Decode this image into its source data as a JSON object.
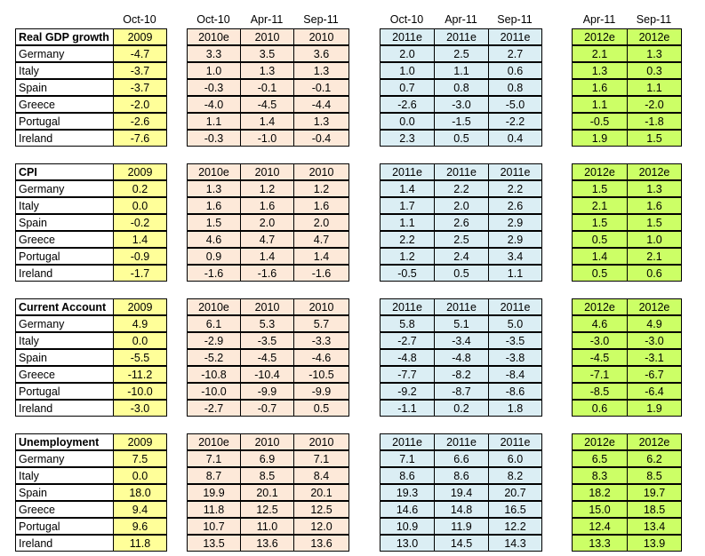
{
  "header_row": {
    "col_2009": "Oct-10",
    "g1": [
      "Oct-10",
      "Apr-11",
      "Sep-11"
    ],
    "g2": [
      "Oct-10",
      "Apr-11",
      "Sep-11"
    ],
    "g3": [
      "Apr-11",
      "Sep-11"
    ]
  },
  "sections": [
    {
      "title": "Real GDP growth",
      "heads": [
        "2009",
        "2010e",
        "2010",
        "2010",
        "2011e",
        "2011e",
        "2011e",
        "2012e",
        "2012e"
      ],
      "rows": [
        {
          "country": "Germany",
          "vals": [
            "-4.7",
            "3.3",
            "3.5",
            "3.6",
            "2.0",
            "2.5",
            "2.7",
            "2.1",
            "1.3"
          ]
        },
        {
          "country": "Italy",
          "vals": [
            "-3.7",
            "1.0",
            "1.3",
            "1.3",
            "1.0",
            "1.1",
            "0.6",
            "1.3",
            "0.3"
          ]
        },
        {
          "country": "Spain",
          "vals": [
            "-3.7",
            "-0.3",
            "-0.1",
            "-0.1",
            "0.7",
            "0.8",
            "0.8",
            "1.6",
            "1.1"
          ]
        },
        {
          "country": "Greece",
          "vals": [
            "-2.0",
            "-4.0",
            "-4.5",
            "-4.4",
            "-2.6",
            "-3.0",
            "-5.0",
            "1.1",
            "-2.0"
          ]
        },
        {
          "country": "Portugal",
          "vals": [
            "-2.6",
            "1.1",
            "1.4",
            "1.3",
            "0.0",
            "-1.5",
            "-2.2",
            "-0.5",
            "-1.8"
          ]
        },
        {
          "country": "Ireland",
          "vals": [
            "-7.6",
            "-0.3",
            "-1.0",
            "-0.4",
            "2.3",
            "0.5",
            "0.4",
            "1.9",
            "1.5"
          ]
        }
      ]
    },
    {
      "title": "CPI",
      "heads": [
        "2009",
        "2010e",
        "2010",
        "2010",
        "2011e",
        "2011e",
        "2011e",
        "2012e",
        "2012e"
      ],
      "rows": [
        {
          "country": "Germany",
          "vals": [
            "0.2",
            "1.3",
            "1.2",
            "1.2",
            "1.4",
            "2.2",
            "2.2",
            "1.5",
            "1.3"
          ]
        },
        {
          "country": "Italy",
          "vals": [
            "0.0",
            "1.6",
            "1.6",
            "1.6",
            "1.7",
            "2.0",
            "2.6",
            "2.1",
            "1.6"
          ]
        },
        {
          "country": "Spain",
          "vals": [
            "-0.2",
            "1.5",
            "2.0",
            "2.0",
            "1.1",
            "2.6",
            "2.9",
            "1.5",
            "1.5"
          ]
        },
        {
          "country": "Greece",
          "vals": [
            "1.4",
            "4.6",
            "4.7",
            "4.7",
            "2.2",
            "2.5",
            "2.9",
            "0.5",
            "1.0"
          ]
        },
        {
          "country": "Portugal",
          "vals": [
            "-0.9",
            "0.9",
            "1.4",
            "1.4",
            "1.2",
            "2.4",
            "3.4",
            "1.4",
            "2.1"
          ]
        },
        {
          "country": "Ireland",
          "vals": [
            "-1.7",
            "-1.6",
            "-1.6",
            "-1.6",
            "-0.5",
            "0.5",
            "1.1",
            "0.5",
            "0.6"
          ]
        }
      ]
    },
    {
      "title": "Current Account",
      "heads": [
        "2009",
        "2010e",
        "2010",
        "2010",
        "2011e",
        "2011e",
        "2011e",
        "2012e",
        "2012e"
      ],
      "rows": [
        {
          "country": "Germany",
          "vals": [
            "4.9",
            "6.1",
            "5.3",
            "5.7",
            "5.8",
            "5.1",
            "5.0",
            "4.6",
            "4.9"
          ]
        },
        {
          "country": "Italy",
          "vals": [
            "0.0",
            "-2.9",
            "-3.5",
            "-3.3",
            "-2.7",
            "-3.4",
            "-3.5",
            "-3.0",
            "-3.0"
          ]
        },
        {
          "country": "Spain",
          "vals": [
            "-5.5",
            "-5.2",
            "-4.5",
            "-4.6",
            "-4.8",
            "-4.8",
            "-3.8",
            "-4.5",
            "-3.1"
          ]
        },
        {
          "country": "Greece",
          "vals": [
            "-11.2",
            "-10.8",
            "-10.4",
            "-10.5",
            "-7.7",
            "-8.2",
            "-8.4",
            "-7.1",
            "-6.7"
          ]
        },
        {
          "country": "Portugal",
          "vals": [
            "-10.0",
            "-10.0",
            "-9.9",
            "-9.9",
            "-9.2",
            "-8.7",
            "-8.6",
            "-8.5",
            "-6.4"
          ]
        },
        {
          "country": "Ireland",
          "vals": [
            "-3.0",
            "-2.7",
            "-0.7",
            "0.5",
            "-1.1",
            "0.2",
            "1.8",
            "0.6",
            "1.9"
          ]
        }
      ]
    },
    {
      "title": "Unemployment",
      "heads": [
        "2009",
        "2010e",
        "2010",
        "2010",
        "2011e",
        "2011e",
        "2011e",
        "2012e",
        "2012e"
      ],
      "rows": [
        {
          "country": "Germany",
          "vals": [
            "7.5",
            "7.1",
            "6.9",
            "7.1",
            "7.1",
            "6.6",
            "6.0",
            "6.5",
            "6.2"
          ]
        },
        {
          "country": "Italy",
          "vals": [
            "0.0",
            "8.7",
            "8.5",
            "8.4",
            "8.6",
            "8.6",
            "8.2",
            "8.3",
            "8.5"
          ]
        },
        {
          "country": "Spain",
          "vals": [
            "18.0",
            "19.9",
            "20.1",
            "20.1",
            "19.3",
            "19.4",
            "20.7",
            "18.2",
            "19.7"
          ]
        },
        {
          "country": "Greece",
          "vals": [
            "9.4",
            "11.8",
            "12.5",
            "12.5",
            "14.6",
            "14.8",
            "16.5",
            "15.0",
            "18.5"
          ]
        },
        {
          "country": "Portugal",
          "vals": [
            "9.6",
            "10.7",
            "11.0",
            "12.0",
            "10.9",
            "11.9",
            "12.2",
            "12.4",
            "13.4"
          ]
        },
        {
          "country": "Ireland",
          "vals": [
            "11.8",
            "13.5",
            "13.6",
            "13.6",
            "13.0",
            "14.5",
            "14.3",
            "13.3",
            "13.9"
          ]
        }
      ]
    }
  ],
  "colors": {
    "col_2009": "#ffff99",
    "group_2010": "#fde9d9",
    "group_2011": "#dbeef4",
    "group_2012": "#ccff66"
  }
}
